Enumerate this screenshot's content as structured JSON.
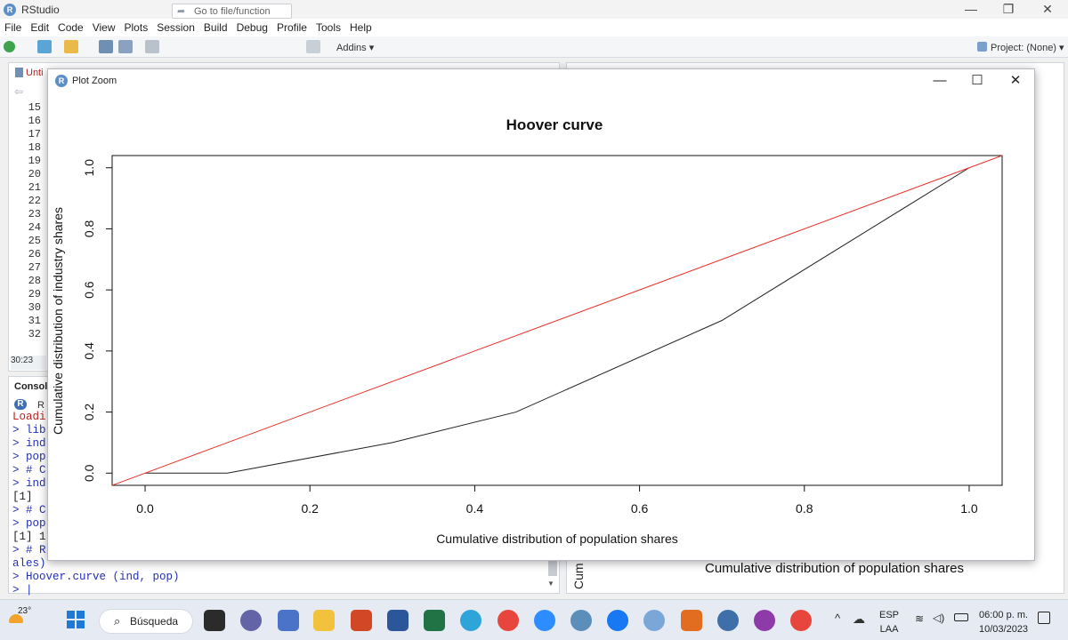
{
  "app": {
    "title": "RStudio"
  },
  "menu": [
    "File",
    "Edit",
    "Code",
    "View",
    "Plots",
    "Session",
    "Build",
    "Debug",
    "Profile",
    "Tools",
    "Help"
  ],
  "toolbar": {
    "goto_placeholder": "Go to file/function",
    "addins": "Addins",
    "project": "Project: (None)"
  },
  "editor": {
    "tab": "Unti",
    "lines": [
      "15",
      "16",
      "17",
      "18",
      "19",
      "20",
      "21",
      "22",
      "23",
      "24",
      "25",
      "26",
      "27",
      "28",
      "29",
      "30",
      "31",
      "32"
    ],
    "cursor_pos": "30:23"
  },
  "console": {
    "tab": "Console",
    "lines": [
      {
        "text": "Loadi",
        "cls": "red"
      },
      {
        "text": "> lib",
        "cls": "blue"
      },
      {
        "text": "> ind",
        "cls": "blue"
      },
      {
        "text": "> pop",
        "cls": "blue"
      },
      {
        "text": "> # C",
        "cls": "blue"
      },
      {
        "text": "> ind",
        "cls": "blue"
      },
      {
        "text": "[1]",
        "cls": "out"
      },
      {
        "text": "> # C",
        "cls": "blue"
      },
      {
        "text": "> pop",
        "cls": "blue"
      },
      {
        "text": "[1] 1",
        "cls": "out"
      },
      {
        "text": "> # R",
        "cls": "blue"
      },
      {
        "text": "ales)",
        "cls": "blue"
      },
      {
        "text": "> Hoover.curve (ind, pop)",
        "cls": "blue"
      },
      {
        "text": "> |",
        "cls": "blue"
      }
    ]
  },
  "plots_pane": {
    "xlabel": "Cumulative distribution of population shares",
    "ylabel_partial": "Cum"
  },
  "zoom_window": {
    "title": "Plot Zoom",
    "minimize": "—",
    "maximize": "☐",
    "close": "✕"
  },
  "chart_data": {
    "type": "line",
    "title": "Hoover curve",
    "xlabel": "Cumulative distribution of population shares",
    "ylabel": "Cumulative distribution of industry shares",
    "xlim": [
      -0.04,
      1.04
    ],
    "ylim": [
      -0.04,
      1.04
    ],
    "xticks": [
      "0.0",
      "0.2",
      "0.4",
      "0.6",
      "0.8",
      "1.0"
    ],
    "yticks": [
      "0.0",
      "0.2",
      "0.4",
      "0.6",
      "0.8",
      "1.0"
    ],
    "grid": false,
    "series": [
      {
        "color": "#222222",
        "x": [
          0,
          0.1,
          0.3,
          0.45,
          0.7,
          1.0
        ],
        "y": [
          0,
          0,
          0.1,
          0.2,
          0.5,
          1.0
        ]
      },
      {
        "color": "#e8322b",
        "x": [
          -0.04,
          1.04
        ],
        "y": [
          -0.04,
          1.04
        ]
      }
    ]
  },
  "taskbar": {
    "temperature": "23°",
    "search": "Búsqueda",
    "lang1": "ESP",
    "lang2": "LAA",
    "time": "06:00 p. m.",
    "date": "10/03/2023"
  },
  "colors": {
    "accent": "#5d8fc7",
    "taskbar": "#e6ebf3"
  }
}
